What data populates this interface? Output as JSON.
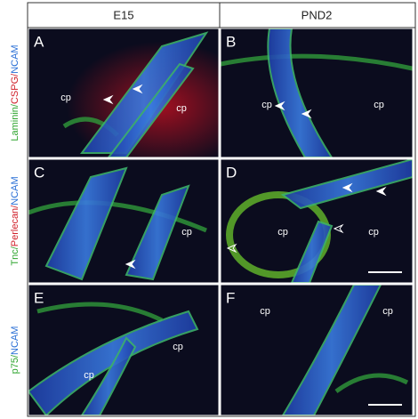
{
  "columns": [
    "E15",
    "PND2"
  ],
  "rows": [
    {
      "label_parts": [
        {
          "text": "Laminin/",
          "color": "#2fa52f"
        },
        {
          "text": "CSPG/",
          "color": "#d0202a"
        },
        {
          "text": "NCAM",
          "color": "#2a6fd6"
        }
      ]
    },
    {
      "label_parts": [
        {
          "text": "Tnc/",
          "color": "#2fa52f"
        },
        {
          "text": "Perlecan/",
          "color": "#d0202a"
        },
        {
          "text": "NCAM",
          "color": "#2a6fd6"
        }
      ]
    },
    {
      "label_parts": [
        {
          "text": "p75/",
          "color": "#2fa52f"
        },
        {
          "text": "NCAM",
          "color": "#2a6fd6"
        }
      ]
    }
  ],
  "panels": [
    {
      "letter": "A",
      "labels": [
        "cp",
        "cp"
      ]
    },
    {
      "letter": "B",
      "labels": [
        "cp",
        "cp"
      ]
    },
    {
      "letter": "C",
      "labels": [
        "cp"
      ]
    },
    {
      "letter": "D",
      "labels": [
        "cp",
        "cp"
      ]
    },
    {
      "letter": "E",
      "labels": [
        "cp",
        "cp"
      ]
    },
    {
      "letter": "F",
      "labels": [
        "cp",
        "cp"
      ]
    }
  ]
}
